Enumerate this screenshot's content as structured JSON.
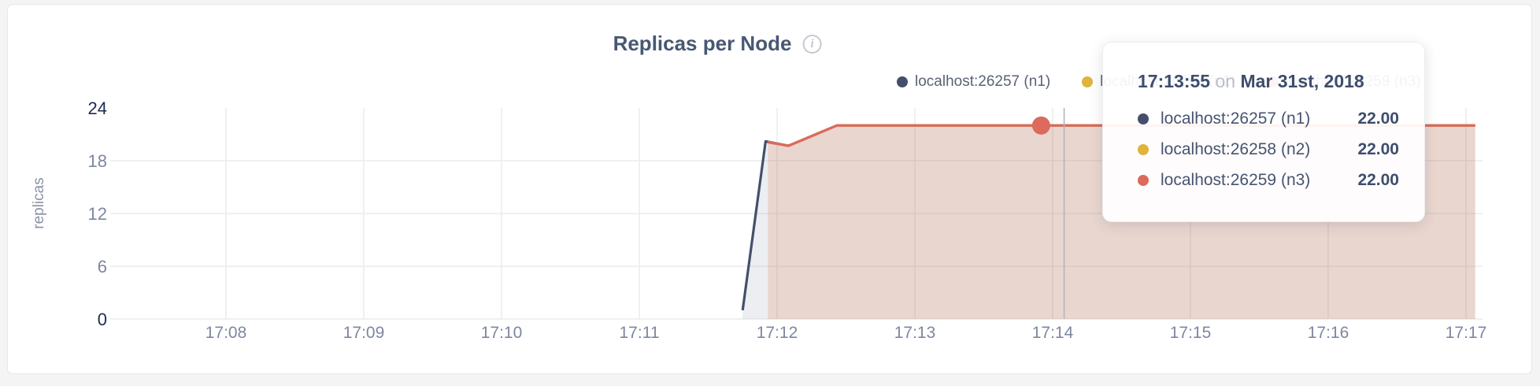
{
  "header": {
    "title": "Replicas per Node",
    "info_icon_glyph": "i"
  },
  "tooltip": {
    "time": "17:13:55",
    "conjunction": "on",
    "date": "Mar 31st, 2018",
    "rows": [
      {
        "label": "localhost:26257 (n1)",
        "value": "22.00"
      },
      {
        "label": "localhost:26258 (n2)",
        "value": "22.00"
      },
      {
        "label": "localhost:26259 (n3)",
        "value": "22.00"
      }
    ]
  },
  "chart_data": {
    "type": "area",
    "title": "Replicas per Node",
    "xlabel": "",
    "ylabel": "replicas",
    "ylim": [
      0,
      24
    ],
    "grid": true,
    "legend_position": "top-right",
    "x_ticks": [
      "17:08",
      "17:09",
      "17:10",
      "17:11",
      "17:12",
      "17:13",
      "17:14",
      "17:15",
      "17:16",
      "17:17"
    ],
    "y_ticks": [
      0,
      6,
      12,
      18,
      24
    ],
    "x_start_time": "17:08",
    "series": [
      {
        "name": "localhost:26257 (n1)",
        "color": "#44506b",
        "fill": "rgba(71,88,114,0.10)",
        "points_sec_value": [
          [
            225,
            1
          ],
          [
            235,
            20.2
          ],
          [
            245,
            19.7
          ],
          [
            266,
            22
          ],
          [
            544,
            22
          ]
        ]
      },
      {
        "name": "localhost:26258 (n2)",
        "color": "#e0b33c",
        "fill": "rgba(224,179,60,0.08)",
        "points_sec_value": [
          [
            236,
            20.1
          ],
          [
            245,
            19.7
          ],
          [
            266,
            22
          ],
          [
            544,
            22
          ]
        ]
      },
      {
        "name": "localhost:26259 (n3)",
        "color": "#dc6a5d",
        "fill": "rgba(220,106,93,0.15)",
        "points_sec_value": [
          [
            236,
            20.1
          ],
          [
            245,
            19.7
          ],
          [
            266,
            22
          ],
          [
            544,
            22
          ]
        ]
      }
    ],
    "hover": {
      "crosshair_seconds_from_start": 365,
      "point_seconds_from_start": 355,
      "point_value": 22,
      "point_series": "localhost:26259 (n3)",
      "point_label_time": "17:13:55"
    }
  }
}
